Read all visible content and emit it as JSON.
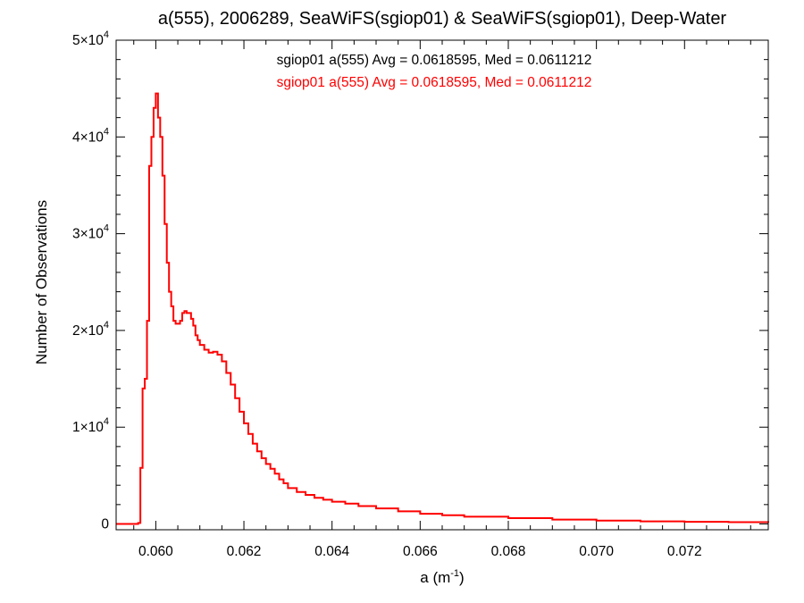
{
  "chart_data": {
    "type": "line",
    "title": "a(555), 2006289, SeaWiFS(sgiop01) & SeaWiFS(sgiop01), Deep-Water",
    "xlabel": "a (m",
    "xlabel_sup": "-1",
    "xlabel_end": ")",
    "ylabel": "Number of Observations",
    "xlim": [
      0.0591,
      0.0739
    ],
    "ylim": [
      -600,
      50000
    ],
    "x_ticks": [
      {
        "value": 0.06,
        "label": "0.060"
      },
      {
        "value": 0.062,
        "label": "0.062"
      },
      {
        "value": 0.064,
        "label": "0.064"
      },
      {
        "value": 0.066,
        "label": "0.066"
      },
      {
        "value": 0.068,
        "label": "0.068"
      },
      {
        "value": 0.07,
        "label": "0.070"
      },
      {
        "value": 0.072,
        "label": "0.072"
      }
    ],
    "y_ticks": [
      {
        "value": 0,
        "mant": "0",
        "exp": ""
      },
      {
        "value": 10000,
        "mant": "1×10",
        "exp": "4"
      },
      {
        "value": 20000,
        "mant": "2×10",
        "exp": "4"
      },
      {
        "value": 30000,
        "mant": "3×10",
        "exp": "4"
      },
      {
        "value": 40000,
        "mant": "4×10",
        "exp": "4"
      },
      {
        "value": 50000,
        "mant": "5×10",
        "exp": "4"
      }
    ],
    "annotations": [
      {
        "text": "sgiop01 a(555) Avg = 0.0618595, Med = 0.0611212",
        "color": "#000000"
      },
      {
        "text": "sgiop01 a(555) Avg = 0.0618595, Med = 0.0611212",
        "color": "#ff0000"
      }
    ],
    "series": [
      {
        "color": "#ff0000",
        "style": "step",
        "x": [
          0.0591,
          0.0592,
          0.0593,
          0.0594,
          0.0595,
          0.0596,
          0.05965,
          0.0597,
          0.05975,
          0.0598,
          0.05985,
          0.0599,
          0.05995,
          0.06,
          0.06005,
          0.0601,
          0.06015,
          0.0602,
          0.06025,
          0.0603,
          0.06035,
          0.0604,
          0.06045,
          0.0605,
          0.06055,
          0.0606,
          0.06065,
          0.0607,
          0.0608,
          0.06085,
          0.0609,
          0.06095,
          0.061,
          0.0611,
          0.0612,
          0.0613,
          0.0614,
          0.0615,
          0.0616,
          0.0617,
          0.0618,
          0.0619,
          0.062,
          0.0621,
          0.0622,
          0.0623,
          0.0624,
          0.0625,
          0.0626,
          0.0627,
          0.0628,
          0.0629,
          0.063,
          0.0632,
          0.0634,
          0.0636,
          0.0638,
          0.064,
          0.0643,
          0.0646,
          0.065,
          0.0655,
          0.066,
          0.0665,
          0.067,
          0.068,
          0.069,
          0.07,
          0.071,
          0.072,
          0.073,
          0.0739
        ],
        "y": [
          0,
          0,
          0,
          0,
          0,
          100,
          5800,
          14000,
          15000,
          21000,
          37000,
          40000,
          43000,
          44500,
          42000,
          40000,
          36000,
          31000,
          27000,
          24000,
          22500,
          21000,
          20700,
          20700,
          21000,
          21800,
          22000,
          21800,
          21200,
          20500,
          19500,
          19000,
          18500,
          18000,
          17700,
          17800,
          17500,
          16800,
          15600,
          14400,
          13000,
          11600,
          10400,
          9300,
          8300,
          7500,
          6800,
          6200,
          5700,
          5200,
          4600,
          4200,
          3700,
          3300,
          3000,
          2700,
          2500,
          2300,
          2100,
          1850,
          1600,
          1300,
          1050,
          900,
          750,
          600,
          450,
          350,
          270,
          220,
          180,
          150
        ]
      }
    ]
  }
}
